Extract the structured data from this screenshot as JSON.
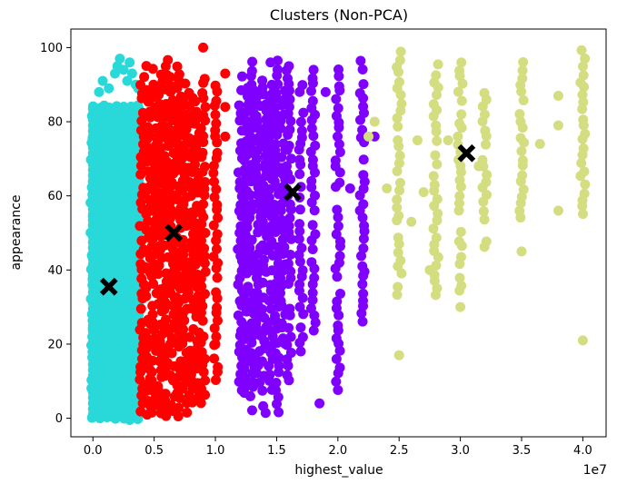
{
  "chart_data": {
    "type": "scatter",
    "title": "Clusters (Non-PCA)",
    "xlabel": "highest_value",
    "ylabel": "appearance",
    "x_offset_text": "1e7",
    "x_scale_note": "x values are in units of 1e7",
    "xlim": [
      -0.18,
      4.19
    ],
    "ylim": [
      -5,
      105
    ],
    "x_ticks": [
      0.0,
      0.5,
      1.0,
      1.5,
      2.0,
      2.5,
      3.0,
      3.5,
      4.0
    ],
    "x_tick_labels": [
      "0.0",
      "0.5",
      "1.0",
      "1.5",
      "2.0",
      "2.5",
      "3.0",
      "3.5",
      "4.0"
    ],
    "y_ticks": [
      0,
      20,
      40,
      60,
      80,
      100
    ],
    "y_tick_labels": [
      "0",
      "20",
      "40",
      "60",
      "80",
      "100"
    ],
    "grid": false,
    "series": [
      {
        "color": "#29d9d9",
        "x_range": [
          0.0,
          0.38
        ],
        "y_range": [
          1,
          84
        ],
        "columns": [
          {
            "x": 0.0,
            "y": [
              0,
              84
            ]
          },
          {
            "x": 0.05,
            "y": [
              0,
              84
            ]
          },
          {
            "x": 0.1,
            "y": [
              0,
              84
            ]
          },
          {
            "x": 0.15,
            "y": [
              0,
              84
            ]
          },
          {
            "x": 0.2,
            "y": [
              0,
              84
            ]
          },
          {
            "x": 0.25,
            "y": [
              0,
              84
            ]
          },
          {
            "x": 0.3,
            "y": [
              0,
              84
            ]
          },
          {
            "x": 0.35,
            "y": [
              0,
              84
            ]
          }
        ],
        "extra_points": [
          [
            0.05,
            88
          ],
          [
            0.08,
            91
          ],
          [
            0.13,
            89
          ],
          [
            0.18,
            93
          ],
          [
            0.2,
            95
          ],
          [
            0.22,
            97
          ],
          [
            0.25,
            94
          ],
          [
            0.28,
            91
          ],
          [
            0.3,
            96
          ],
          [
            0.32,
            93
          ],
          [
            0.35,
            90
          ],
          [
            0.37,
            89
          ]
        ]
      },
      {
        "color": "#ff0000",
        "x_range": [
          0.38,
          1.05
        ],
        "y_range": [
          1,
          97
        ],
        "columns": [
          {
            "x": 0.4,
            "y": [
              2,
              92
            ]
          },
          {
            "x": 0.45,
            "y": [
              1,
              95
            ]
          },
          {
            "x": 0.5,
            "y": [
              2,
              96
            ]
          },
          {
            "x": 0.55,
            "y": [
              1,
              94
            ]
          },
          {
            "x": 0.6,
            "y": [
              1,
              97
            ]
          },
          {
            "x": 0.65,
            "y": [
              2,
              92
            ]
          },
          {
            "x": 0.7,
            "y": [
              1,
              95
            ]
          },
          {
            "x": 0.75,
            "y": [
              2,
              90
            ]
          },
          {
            "x": 0.8,
            "y": [
              2,
              88
            ]
          },
          {
            "x": 0.85,
            "y": [
              5,
              85
            ]
          },
          {
            "x": 0.9,
            "y": [
              4,
              92
            ]
          },
          {
            "x": 1.0,
            "y": [
              10,
              91
            ]
          }
        ],
        "extra_points": [
          [
            0.9,
            100
          ],
          [
            0.76,
            78
          ],
          [
            1.08,
            84
          ],
          [
            1.08,
            76
          ],
          [
            1.08,
            93
          ],
          [
            1.0,
            20
          ]
        ]
      },
      {
        "color": "#8000ff",
        "x_range": [
          1.15,
          2.25
        ],
        "y_range": [
          1,
          97
        ],
        "columns": [
          {
            "x": 1.2,
            "y": [
              8,
              92
            ]
          },
          {
            "x": 1.25,
            "y": [
              5,
              90
            ]
          },
          {
            "x": 1.3,
            "y": [
              2,
              96
            ]
          },
          {
            "x": 1.35,
            "y": [
              10,
              88
            ]
          },
          {
            "x": 1.4,
            "y": [
              1,
              92
            ]
          },
          {
            "x": 1.45,
            "y": [
              8,
              90
            ]
          },
          {
            "x": 1.5,
            "y": [
              2,
              96
            ]
          },
          {
            "x": 1.55,
            "y": [
              20,
              88
            ]
          },
          {
            "x": 1.6,
            "y": [
              10,
              94
            ]
          },
          {
            "x": 1.7,
            "y": [
              18,
              90
            ]
          },
          {
            "x": 1.8,
            "y": [
              24,
              94
            ]
          },
          {
            "x": 2.0,
            "y": [
              8,
              94
            ]
          },
          {
            "x": 2.2,
            "y": [
              24,
              97
            ]
          }
        ],
        "extra_points": [
          [
            1.45,
            96
          ],
          [
            1.6,
            95
          ],
          [
            1.9,
            88
          ],
          [
            2.1,
            62
          ],
          [
            2.3,
            76
          ],
          [
            1.85,
            4
          ],
          [
            2.0,
            25
          ],
          [
            2.2,
            41
          ]
        ]
      },
      {
        "color": "#d4dd80",
        "x_range": [
          2.25,
          4.0
        ],
        "y_range": [
          17,
          100
        ],
        "columns": [
          {
            "x": 2.5,
            "y": [
              33,
              99
            ]
          },
          {
            "x": 2.8,
            "y": [
              33,
              95
            ]
          },
          {
            "x": 3.0,
            "y": [
              34,
              97
            ]
          },
          {
            "x": 3.2,
            "y": [
              46,
              88
            ]
          },
          {
            "x": 3.5,
            "y": [
              54,
              98
            ]
          },
          {
            "x": 4.0,
            "y": [
              55,
              99
            ]
          }
        ],
        "extra_points": [
          [
            2.5,
            17
          ],
          [
            2.25,
            76
          ],
          [
            2.3,
            80
          ],
          [
            2.4,
            62
          ],
          [
            2.6,
            53
          ],
          [
            2.65,
            75
          ],
          [
            2.7,
            61
          ],
          [
            2.75,
            40
          ],
          [
            2.8,
            79
          ],
          [
            2.9,
            75
          ],
          [
            3.0,
            30
          ],
          [
            3.15,
            68
          ],
          [
            3.5,
            45
          ],
          [
            3.65,
            74
          ],
          [
            3.8,
            87
          ],
          [
            3.8,
            56
          ],
          [
            3.8,
            79
          ],
          [
            4.0,
            21
          ]
        ]
      }
    ],
    "centroids": [
      {
        "x": 0.13,
        "y": 35.5,
        "marker": "X",
        "color": "#000000"
      },
      {
        "x": 0.66,
        "y": 50.0,
        "marker": "X",
        "color": "#000000"
      },
      {
        "x": 1.63,
        "y": 61.0,
        "marker": "X",
        "color": "#000000"
      },
      {
        "x": 3.05,
        "y": 71.5,
        "marker": "X",
        "color": "#000000"
      }
    ]
  }
}
